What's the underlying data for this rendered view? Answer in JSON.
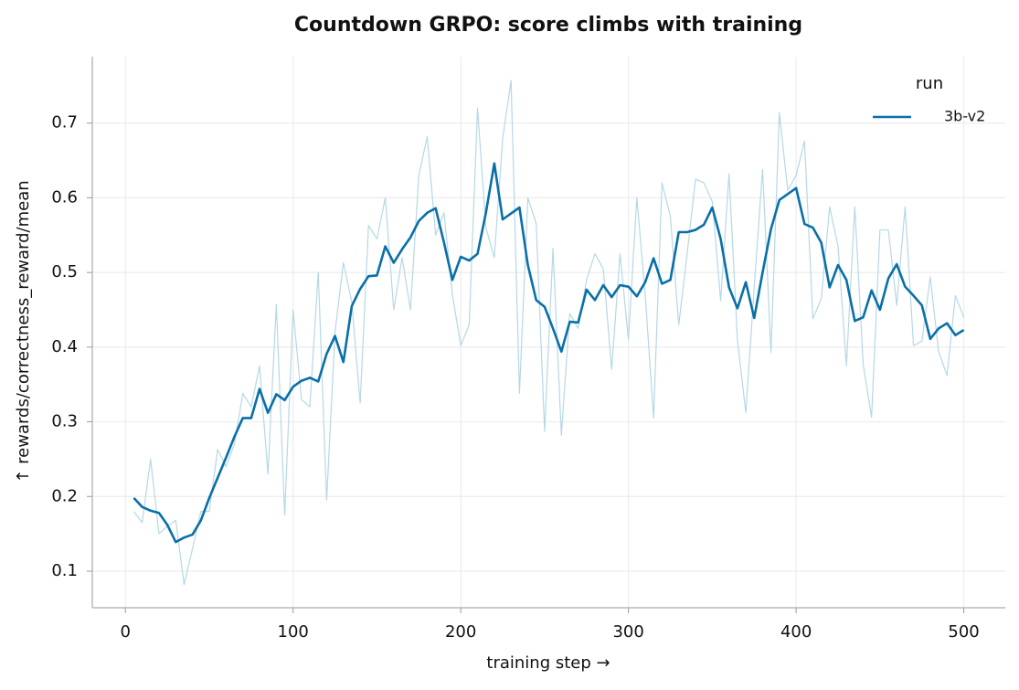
{
  "chart_data": {
    "type": "line",
    "title": "Countdown GRPO: score climbs with training",
    "x_label": "training step  →",
    "y_label": "↑  rewards/correctness_reward/mean",
    "legend_title": "run",
    "legend_position": "upper right",
    "grid": true,
    "x": [
      5,
      10,
      15,
      20,
      25,
      30,
      35,
      40,
      45,
      50,
      55,
      60,
      65,
      70,
      75,
      80,
      85,
      90,
      95,
      100,
      105,
      110,
      115,
      120,
      125,
      130,
      135,
      140,
      145,
      150,
      155,
      160,
      165,
      170,
      175,
      180,
      185,
      190,
      195,
      200,
      205,
      210,
      215,
      220,
      225,
      230,
      235,
      240,
      245,
      250,
      255,
      260,
      265,
      270,
      275,
      280,
      285,
      290,
      295,
      300,
      305,
      310,
      315,
      320,
      325,
      330,
      335,
      340,
      345,
      350,
      355,
      360,
      365,
      370,
      375,
      380,
      385,
      390,
      395,
      400,
      405,
      410,
      415,
      420,
      425,
      430,
      435,
      440,
      445,
      450,
      455,
      460,
      465,
      470,
      475,
      480,
      485,
      490,
      495,
      500
    ],
    "series": [
      {
        "color": "#b5d8e6",
        "values": [
          0.18,
          0.165,
          0.25,
          0.15,
          0.16,
          0.168,
          0.082,
          0.13,
          0.18,
          0.18,
          0.263,
          0.24,
          0.27,
          0.338,
          0.32,
          0.375,
          0.23,
          0.457,
          0.175,
          0.45,
          0.33,
          0.32,
          0.5,
          0.195,
          0.42,
          0.513,
          0.46,
          0.325,
          0.563,
          0.545,
          0.6,
          0.45,
          0.52,
          0.45,
          0.63,
          0.682,
          0.55,
          0.58,
          0.47,
          0.402,
          0.43,
          0.72,
          0.56,
          0.52,
          0.68,
          0.757,
          0.338,
          0.6,
          0.565,
          0.287,
          0.532,
          0.282,
          0.445,
          0.425,
          0.49,
          0.525,
          0.505,
          0.37,
          0.525,
          0.41,
          0.6,
          0.47,
          0.305,
          0.62,
          0.575,
          0.43,
          0.525,
          0.625,
          0.62,
          0.595,
          0.462,
          0.632,
          0.41,
          0.312,
          0.48,
          0.638,
          0.393,
          0.714,
          0.61,
          0.63,
          0.676,
          0.438,
          0.465,
          0.588,
          0.535,
          0.375,
          0.588,
          0.377,
          0.306,
          0.557,
          0.557,
          0.456,
          0.588,
          0.402,
          0.408,
          0.494,
          0.394,
          0.362,
          0.469,
          0.44
        ]
      },
      {
        "name": "3b-v2",
        "color": "#0a6fa8",
        "values": [
          0.198,
          0.186,
          0.181,
          0.178,
          0.162,
          0.139,
          0.145,
          0.149,
          0.168,
          0.198,
          0.225,
          0.252,
          0.28,
          0.305,
          0.305,
          0.344,
          0.312,
          0.337,
          0.329,
          0.347,
          0.355,
          0.359,
          0.354,
          0.391,
          0.415,
          0.38,
          0.455,
          0.478,
          0.495,
          0.496,
          0.535,
          0.513,
          0.531,
          0.547,
          0.569,
          0.58,
          0.586,
          0.54,
          0.49,
          0.521,
          0.516,
          0.525,
          0.58,
          0.646,
          0.571,
          0.579,
          0.587,
          0.51,
          0.463,
          0.454,
          0.425,
          0.394,
          0.434,
          0.433,
          0.477,
          0.463,
          0.483,
          0.467,
          0.483,
          0.481,
          0.468,
          0.487,
          0.519,
          0.485,
          0.49,
          0.554,
          0.554,
          0.557,
          0.564,
          0.587,
          0.545,
          0.48,
          0.452,
          0.487,
          0.439,
          0.5,
          0.558,
          0.597,
          0.605,
          0.613,
          0.565,
          0.56,
          0.54,
          0.48,
          0.51,
          0.49,
          0.435,
          0.44,
          0.476,
          0.45,
          0.492,
          0.511,
          0.481,
          0.469,
          0.456,
          0.411,
          0.425,
          0.432,
          0.416,
          0.423
        ]
      }
    ],
    "xlim": [
      -19.75,
      524.75
    ],
    "xticks": [
      0,
      100,
      200,
      300,
      400,
      500
    ],
    "ylim": [
      0.051,
      0.789
    ],
    "yticks": [
      0.1,
      0.2,
      0.3,
      0.4,
      0.5,
      0.6,
      0.7
    ]
  }
}
